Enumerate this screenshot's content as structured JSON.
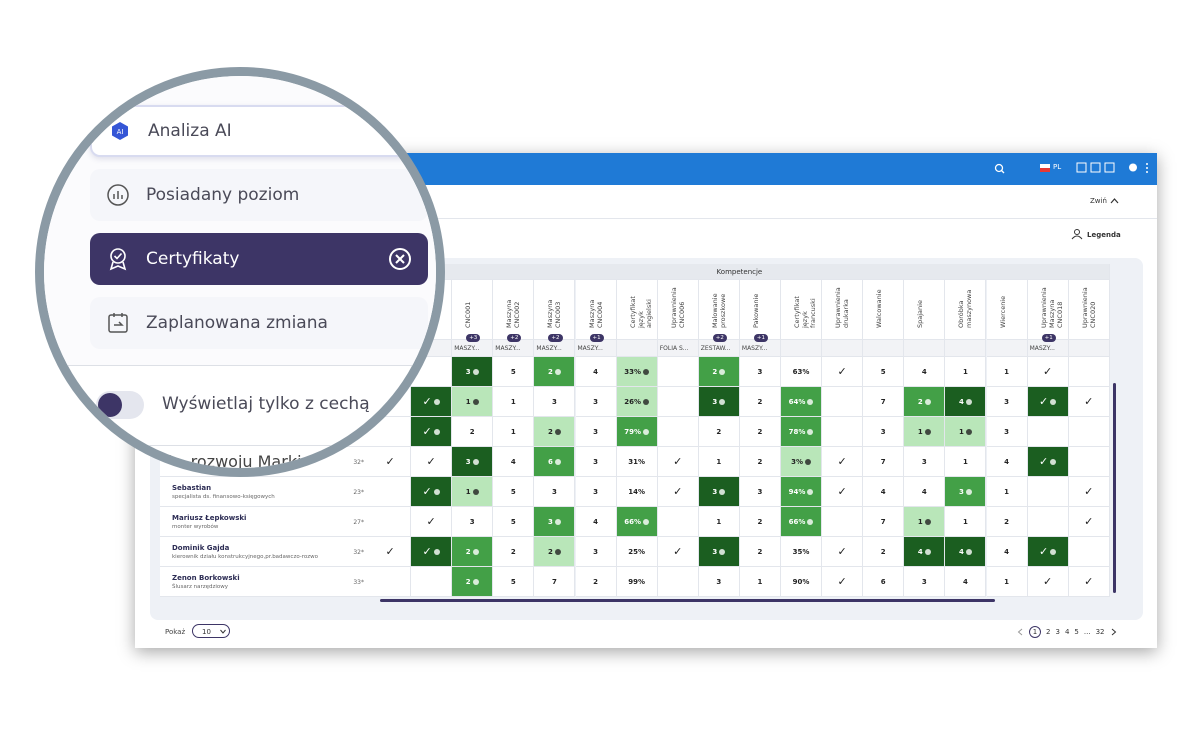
{
  "topbar": {
    "language": "PL"
  },
  "toolbar": {
    "collapse": "Zwiń",
    "legend": "Legenda"
  },
  "magnifier": {
    "menu": [
      {
        "label": "Analiza AI",
        "state": "hover"
      },
      {
        "label": "Posiadany poziom",
        "state": "normal"
      },
      {
        "label": "Certyfikaty",
        "state": "selected"
      },
      {
        "label": "Zaplanowana zmiana",
        "state": "normal"
      }
    ],
    "toggle_label": "Wyświetlaj tylko z cechą",
    "row_fragment": "ds. rozwoju Marki"
  },
  "table": {
    "group_header": "Kompetencje",
    "columns": [
      {
        "header": null,
        "badge": null,
        "tag": null
      },
      {
        "header": null,
        "badge": null,
        "tag": null
      },
      {
        "header": "CNC001",
        "badge": "+3",
        "tag": "MASZY..."
      },
      {
        "header": "Maszyna CNC002",
        "badge": "+2",
        "tag": "MASZY..."
      },
      {
        "header": "Maszyna CNC003",
        "badge": "+2",
        "tag": "MASZY..."
      },
      {
        "header": "Maszyna CNC004",
        "badge": "+1",
        "tag": "MASZY..."
      },
      {
        "header": "Certyfikat język angielski",
        "badge": null,
        "tag": null
      },
      {
        "header": "Uprawnienia CNC006",
        "badge": null,
        "tag": "FOLIA S..."
      },
      {
        "header": "Malowanie proszkowe",
        "badge": "+2",
        "tag": "ZESTAW..."
      },
      {
        "header": "Pakowanie",
        "badge": "+1",
        "tag": "MASZY..."
      },
      {
        "header": "Certyfikat język francuski",
        "badge": null,
        "tag": null
      },
      {
        "header": "Uprawnienia drukarka",
        "badge": null,
        "tag": null
      },
      {
        "header": "Walcowanie",
        "badge": null,
        "tag": null
      },
      {
        "header": "Spajanie",
        "badge": null,
        "tag": null
      },
      {
        "header": "Obróbka maszynowa",
        "badge": null,
        "tag": null
      },
      {
        "header": "Wiercenie",
        "badge": null,
        "tag": null
      },
      {
        "header": "Uprawnienia Maszyna CNC018",
        "badge": "+1",
        "tag": "MASZY..."
      },
      {
        "header": "Uprawnienia CNC020",
        "badge": null,
        "tag": null
      }
    ],
    "shade_colors": [
      "#ffffff",
      "#b9e6b9",
      "#43a047",
      "#1b5e20"
    ],
    "rows": [
      {
        "name": null,
        "role": null,
        "count": null,
        "cells": [
          null,
          null,
          "3",
          "5",
          "2",
          "4",
          "33%",
          null,
          "2",
          "3",
          "63%",
          "✓",
          "5",
          "4",
          "1",
          "1",
          "✓",
          null
        ],
        "shades": [
          0,
          0,
          3,
          0,
          2,
          0,
          1,
          0,
          2,
          0,
          0,
          0,
          0,
          0,
          0,
          0,
          0,
          0
        ]
      },
      {
        "name": null,
        "role": null,
        "count": null,
        "cells": [
          null,
          "✓",
          "1",
          "1",
          "3",
          "3",
          "26%",
          null,
          "3",
          "2",
          "64%",
          null,
          "7",
          "2",
          "4",
          "3",
          "✓",
          "✓"
        ],
        "shades": [
          0,
          3,
          1,
          0,
          0,
          0,
          1,
          0,
          3,
          0,
          2,
          0,
          0,
          2,
          3,
          0,
          3,
          0
        ]
      },
      {
        "name": null,
        "role": null,
        "count": null,
        "cells": [
          null,
          "✓",
          "2",
          "1",
          "2",
          "3",
          "79%",
          null,
          "2",
          "2",
          "78%",
          null,
          "3",
          "1",
          "1",
          "3",
          null,
          null
        ],
        "shades": [
          0,
          3,
          0,
          0,
          1,
          0,
          2,
          0,
          0,
          0,
          2,
          0,
          0,
          1,
          1,
          0,
          0,
          0
        ]
      },
      {
        "name": null,
        "role": null,
        "count": "32*",
        "cells": [
          "✓",
          "✓",
          "3",
          "4",
          "6",
          "3",
          "31%",
          "✓",
          "1",
          "2",
          "3%",
          "✓",
          "7",
          "3",
          "1",
          "4",
          "✓",
          null
        ],
        "shades": [
          0,
          0,
          3,
          0,
          2,
          0,
          0,
          0,
          0,
          0,
          1,
          0,
          0,
          0,
          0,
          0,
          3,
          0
        ]
      },
      {
        "name": "Sebastian",
        "role": "specjalista ds. finansowo-księgowych",
        "count": "23*",
        "cells": [
          null,
          "✓",
          "1",
          "5",
          "3",
          "3",
          "14%",
          "✓",
          "3",
          "3",
          "94%",
          "✓",
          "4",
          "4",
          "3",
          "1",
          null,
          "✓"
        ],
        "shades": [
          0,
          3,
          1,
          0,
          0,
          0,
          0,
          0,
          3,
          0,
          2,
          0,
          0,
          0,
          2,
          0,
          0,
          0
        ]
      },
      {
        "name": "Mariusz Łepkowski",
        "role": "monter wyrobów",
        "count": "27*",
        "cells": [
          null,
          "✓",
          "3",
          "5",
          "3",
          "4",
          "66%",
          null,
          "1",
          "2",
          "66%",
          null,
          "7",
          "1",
          "1",
          "2",
          null,
          "✓"
        ],
        "shades": [
          0,
          0,
          0,
          0,
          2,
          0,
          2,
          0,
          0,
          0,
          2,
          0,
          0,
          1,
          0,
          0,
          0,
          0
        ]
      },
      {
        "name": "Dominik Gajda",
        "role": "kierownik działu konstrukcyjnego,pr.badawczo-rozwo",
        "count": "32*",
        "cells": [
          "✓",
          "✓",
          "2",
          "2",
          "2",
          "3",
          "25%",
          "✓",
          "3",
          "2",
          "35%",
          "✓",
          "2",
          "4",
          "4",
          "4",
          "✓",
          null
        ],
        "shades": [
          0,
          3,
          2,
          0,
          1,
          0,
          0,
          0,
          3,
          0,
          0,
          0,
          0,
          3,
          3,
          0,
          3,
          0
        ]
      },
      {
        "name": "Zenon Borkowski",
        "role": "Ślusarz narzędziowy",
        "count": "33*",
        "cells": [
          null,
          null,
          "2",
          "5",
          "7",
          "2",
          "99%",
          null,
          "3",
          "1",
          "90%",
          "✓",
          "6",
          "3",
          "4",
          "1",
          "✓",
          "✓"
        ],
        "shades": [
          0,
          0,
          2,
          0,
          0,
          0,
          0,
          0,
          0,
          0,
          0,
          0,
          0,
          0,
          0,
          0,
          0,
          0
        ]
      }
    ]
  },
  "footer": {
    "show_label": "Pokaż",
    "page_size": "10",
    "pages": [
      "1",
      "2",
      "3",
      "4",
      "5",
      "...",
      "32"
    ],
    "current_page": 0
  }
}
